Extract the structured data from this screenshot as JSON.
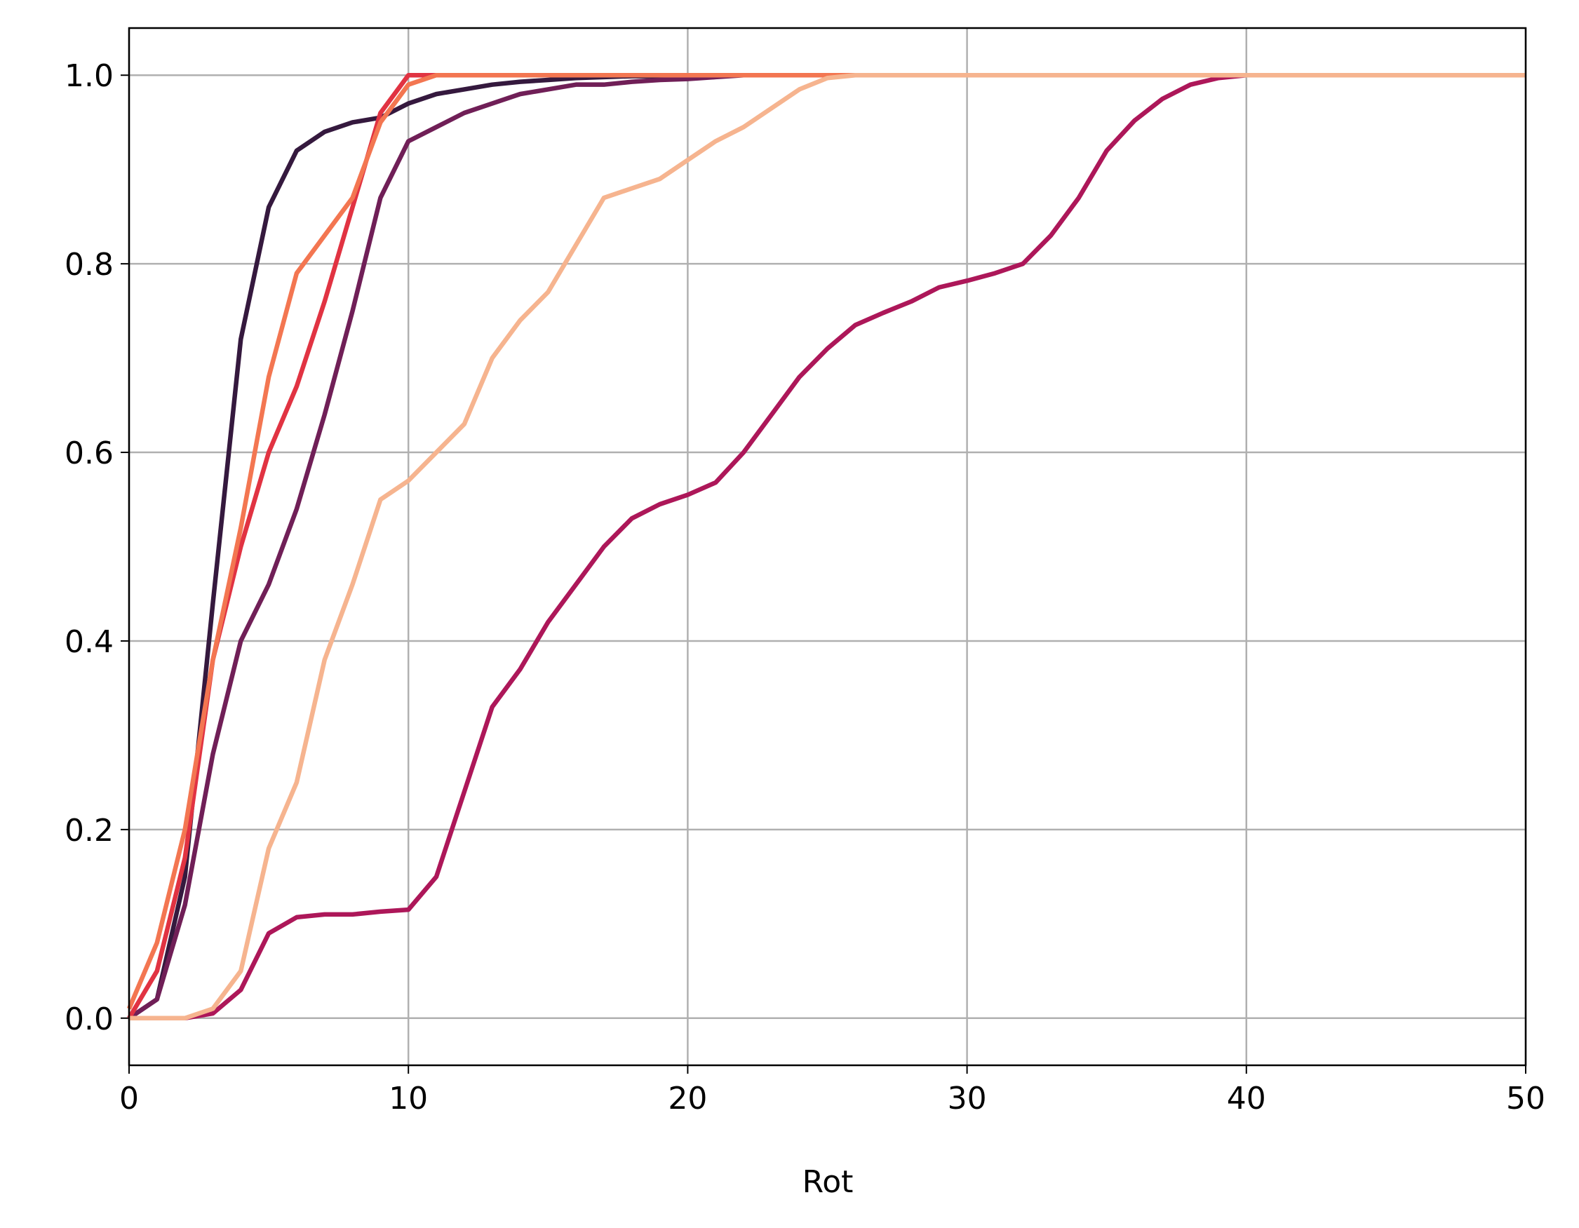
{
  "chart_data": {
    "type": "line",
    "x_label": "Rot",
    "x": [
      0,
      1,
      2,
      3,
      4,
      5,
      6,
      7,
      8,
      9,
      10,
      11,
      12,
      13,
      14,
      15,
      16,
      17,
      18,
      19,
      20,
      21,
      22,
      23,
      24,
      25,
      26,
      27,
      28,
      29,
      30,
      31,
      32,
      33,
      34,
      35,
      36,
      37,
      38,
      39,
      40,
      41,
      42,
      43,
      44,
      45,
      46,
      47,
      48,
      49,
      50
    ],
    "series": [
      {
        "color": "#35193e",
        "values": [
          0,
          0.02,
          0.15,
          0.44,
          0.72,
          0.86,
          0.92,
          0.94,
          0.95,
          0.955,
          0.97,
          0.98,
          0.985,
          0.99,
          0.993,
          0.995,
          0.997,
          0.998,
          0.999,
          0.999,
          1,
          1,
          1,
          1,
          1,
          1,
          1,
          1,
          1,
          1,
          1,
          1,
          1,
          1,
          1,
          1,
          1,
          1,
          1,
          1,
          1,
          1,
          1,
          1,
          1,
          1,
          1,
          1,
          1,
          1,
          1
        ]
      },
      {
        "color": "#701f57",
        "values": [
          0,
          0.02,
          0.12,
          0.28,
          0.4,
          0.46,
          0.54,
          0.64,
          0.75,
          0.87,
          0.93,
          0.945,
          0.96,
          0.97,
          0.98,
          0.985,
          0.99,
          0.99,
          0.993,
          0.995,
          0.996,
          0.998,
          1,
          1,
          1,
          1,
          1,
          1,
          1,
          1,
          1,
          1,
          1,
          1,
          1,
          1,
          1,
          1,
          1,
          1,
          1,
          1,
          1,
          1,
          1,
          1,
          1,
          1,
          1,
          1,
          1
        ]
      },
      {
        "color": "#ad1759",
        "values": [
          0,
          0,
          0,
          0.005,
          0.03,
          0.09,
          0.107,
          0.11,
          0.11,
          0.113,
          0.115,
          0.15,
          0.24,
          0.33,
          0.37,
          0.42,
          0.46,
          0.5,
          0.53,
          0.545,
          0.555,
          0.568,
          0.6,
          0.64,
          0.68,
          0.71,
          0.735,
          0.748,
          0.76,
          0.775,
          0.782,
          0.79,
          0.8,
          0.83,
          0.87,
          0.92,
          0.952,
          0.975,
          0.99,
          0.997,
          1,
          1,
          1,
          1,
          1,
          1,
          1,
          1,
          1,
          1,
          1
        ]
      },
      {
        "color": "#e13342",
        "values": [
          0,
          0.05,
          0.17,
          0.38,
          0.5,
          0.6,
          0.67,
          0.76,
          0.86,
          0.96,
          1,
          1,
          1,
          1,
          1,
          1,
          1,
          1,
          1,
          1,
          1,
          1,
          1,
          1,
          1,
          1,
          1,
          1,
          1,
          1,
          1,
          1,
          1,
          1,
          1,
          1,
          1,
          1,
          1,
          1,
          1,
          1,
          1,
          1,
          1,
          1,
          1,
          1,
          1,
          1,
          1
        ]
      },
      {
        "color": "#f37651",
        "values": [
          0.01,
          0.08,
          0.2,
          0.38,
          0.52,
          0.68,
          0.79,
          0.83,
          0.87,
          0.95,
          0.99,
          1,
          1,
          1,
          1,
          1,
          1,
          1,
          1,
          1,
          1,
          1,
          1,
          1,
          1,
          1,
          1,
          1,
          1,
          1,
          1,
          1,
          1,
          1,
          1,
          1,
          1,
          1,
          1,
          1,
          1,
          1,
          1,
          1,
          1,
          1,
          1,
          1,
          1,
          1,
          1
        ]
      },
      {
        "color": "#f6b48f",
        "values": [
          0,
          0,
          0,
          0.01,
          0.05,
          0.18,
          0.25,
          0.38,
          0.46,
          0.55,
          0.57,
          0.6,
          0.63,
          0.7,
          0.74,
          0.77,
          0.82,
          0.87,
          0.88,
          0.89,
          0.91,
          0.93,
          0.945,
          0.965,
          0.985,
          0.997,
          1,
          1,
          1,
          1,
          1,
          1,
          1,
          1,
          1,
          1,
          1,
          1,
          1,
          1,
          1,
          1,
          1,
          1,
          1,
          1,
          1,
          1,
          1,
          1,
          1
        ]
      }
    ],
    "xlim": [
      0,
      50
    ],
    "xticks": [
      0,
      10,
      20,
      30,
      40,
      50
    ],
    "ylim": [
      -0.05,
      1.05
    ],
    "yticks": [
      {
        "value": 0,
        "label": "0.0"
      },
      0.2,
      0.4,
      0.6,
      0.8,
      {
        "value": 1,
        "label": "1.0"
      }
    ],
    "grid": true
  }
}
